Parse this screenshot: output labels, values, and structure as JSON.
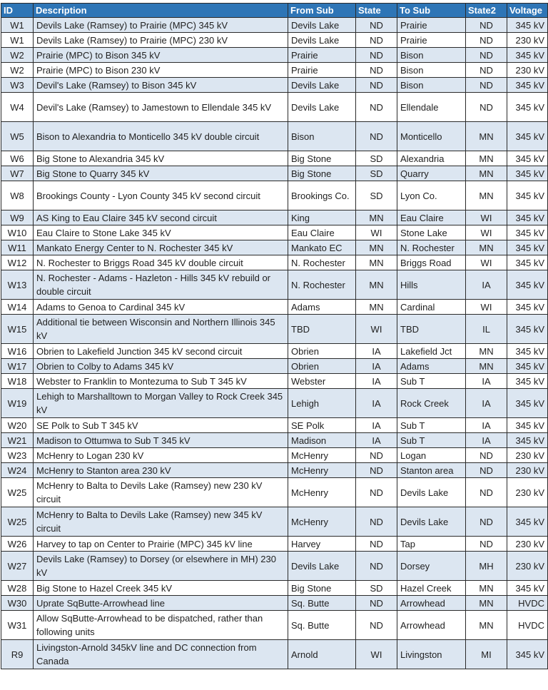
{
  "table": {
    "header_color": "#2e75b6",
    "stripe_color": "#dce6f1",
    "columns": [
      "ID",
      "Description",
      "From Sub",
      "State",
      "To Sub",
      "State2",
      "Voltage"
    ],
    "rows": [
      [
        "W1",
        "Devils Lake (Ramsey) to Prairie (MPC) 345 kV",
        "Devils Lake",
        "ND",
        "Prairie",
        "ND",
        "345 kV"
      ],
      [
        "W1",
        "Devils Lake (Ramsey) to Prairie (MPC) 230 kV",
        "Devils Lake",
        "ND",
        "Prairie",
        "ND",
        "230 kV"
      ],
      [
        "W2",
        "Prairie (MPC) to Bison 345 kV",
        "Prairie",
        "ND",
        "Bison",
        "ND",
        "345 kV"
      ],
      [
        "W2",
        "Prairie (MPC) to Bison 230 kV",
        "Prairie",
        "ND",
        "Bison",
        "ND",
        "230 kV"
      ],
      [
        "W3",
        "Devil's Lake (Ramsey) to Bison 345 kV",
        "Devils Lake",
        "ND",
        "Bison",
        "ND",
        "345 kV"
      ],
      [
        "W4",
        "Devil's Lake (Ramsey) to Jamestown to Ellendale 345 kV",
        "Devils Lake",
        "ND",
        "Ellendale",
        "ND",
        "345 kV"
      ],
      [
        "W5",
        "Bison to Alexandria to Monticello 345 kV double circuit",
        "Bison",
        "ND",
        "Monticello",
        "MN",
        "345 kV"
      ],
      [
        "W6",
        "Big Stone to Alexandria 345 kV",
        "Big Stone",
        "SD",
        "Alexandria",
        "MN",
        "345 kV"
      ],
      [
        "W7",
        "Big Stone to Quarry 345 kV",
        "Big Stone",
        "SD",
        "Quarry",
        "MN",
        "345 kV"
      ],
      [
        "W8",
        "Brookings County - Lyon County 345 kV second circuit",
        "Brookings Co.",
        "SD",
        "Lyon Co.",
        "MN",
        "345 kV"
      ],
      [
        "W9",
        "AS King to Eau Claire 345 kV second circuit",
        "King",
        "MN",
        "Eau Claire",
        "WI",
        "345 kV"
      ],
      [
        "W10",
        "Eau Claire to Stone Lake 345 kV",
        "Eau Claire",
        "WI",
        "Stone Lake",
        "WI",
        "345 kV"
      ],
      [
        "W11",
        "Mankato Energy Center to N. Rochester 345 kV",
        "Mankato EC",
        "MN",
        "N. Rochester",
        "MN",
        "345 kV"
      ],
      [
        "W12",
        "N. Rochester to Briggs Road 345 kV double circuit",
        "N. Rochester",
        "MN",
        "Briggs Road",
        "WI",
        "345 kV"
      ],
      [
        "W13",
        "N. Rochester - Adams - Hazleton - Hills 345 kV rebuild or double circuit",
        "N. Rochester",
        "MN",
        "Hills",
        "IA",
        "345 kV"
      ],
      [
        "W14",
        "Adams to Genoa to Cardinal 345 kV",
        "Adams",
        "MN",
        "Cardinal",
        "WI",
        "345 kV"
      ],
      [
        "W15",
        "Additional tie between Wisconsin and Northern Illinois 345 kV",
        "TBD",
        "WI",
        "TBD",
        "IL",
        "345 kV"
      ],
      [
        "W16",
        "Obrien to Lakefield Junction 345 kV second circuit",
        "Obrien",
        "IA",
        "Lakefield Jct",
        "MN",
        "345 kV"
      ],
      [
        "W17",
        "Obrien to Colby to Adams 345 kV",
        "Obrien",
        "IA",
        "Adams",
        "MN",
        "345 kV"
      ],
      [
        "W18",
        "Webster to Franklin to Montezuma to Sub T 345 kV",
        "Webster",
        "IA",
        "Sub T",
        "IA",
        "345 kV"
      ],
      [
        "W19",
        "Lehigh to Marshalltown to Morgan Valley to Rock Creek 345 kV",
        "Lehigh",
        "IA",
        "Rock Creek",
        "IA",
        "345 kV"
      ],
      [
        "W20",
        "SE Polk to Sub T 345 kV",
        "SE Polk",
        "IA",
        "Sub T",
        "IA",
        "345 kV"
      ],
      [
        "W21",
        "Madison to Ottumwa to Sub T 345 kV",
        "Madison",
        "IA",
        "Sub T",
        "IA",
        "345 kV"
      ],
      [
        "W23",
        "McHenry to Logan 230 kV",
        "McHenry",
        "ND",
        "Logan",
        "ND",
        "230 kV"
      ],
      [
        "W24",
        "McHenry to Stanton area 230 kV",
        "McHenry",
        "ND",
        "Stanton area",
        "ND",
        "230 kV"
      ],
      [
        "W25",
        "McHenry to Balta to Devils Lake (Ramsey) new 230 kV circuit",
        "McHenry",
        "ND",
        "Devils Lake",
        "ND",
        "230 kV"
      ],
      [
        "W25",
        "McHenry to Balta to Devils Lake (Ramsey) new 345 kV circuit",
        "McHenry",
        "ND",
        "Devils Lake",
        "ND",
        "345 kV"
      ],
      [
        "W26",
        "Harvey to tap on Center to Prairie (MPC) 345 kV line",
        "Harvey",
        "ND",
        "Tap",
        "ND",
        "230 kV"
      ],
      [
        "W27",
        "Devils Lake (Ramsey) to Dorsey (or elsewhere in MH) 230 kV",
        "Devils Lake",
        "ND",
        "Dorsey",
        "MH",
        "230 kV"
      ],
      [
        "W28",
        "Big Stone to Hazel Creek 345 kV",
        "Big Stone",
        "SD",
        "Hazel Creek",
        "MN",
        "345 kV"
      ],
      [
        "W30",
        "Uprate SqButte-Arrowhead line",
        "Sq. Butte",
        "ND",
        "Arrowhead",
        "MN",
        "HVDC"
      ],
      [
        "W31",
        "Allow SqButte-Arrowhead to be dispatched, rather than following units",
        "Sq. Butte",
        "ND",
        "Arrowhead",
        "MN",
        "HVDC"
      ],
      [
        "R9",
        "Livingston-Arnold 345kV line and DC connection from Canada",
        "Arnold",
        "WI",
        "Livingston",
        "MI",
        "345 kV"
      ]
    ]
  }
}
